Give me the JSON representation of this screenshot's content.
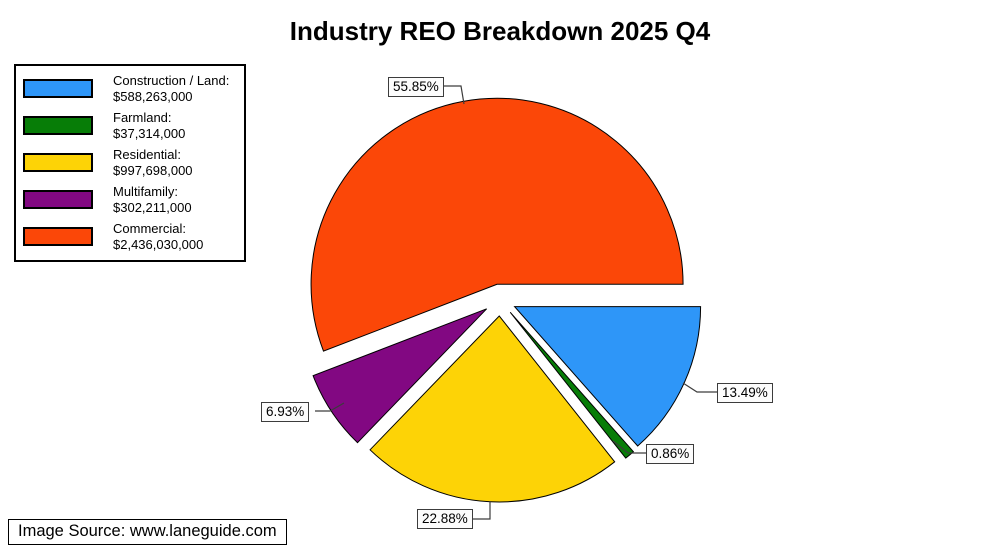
{
  "title": "Industry REO Breakdown 2025 Q4",
  "source_note": "Image Source: www.laneguide.com",
  "legend": {
    "items": [
      {
        "label": "Construction / Land:",
        "value": "$588,263,000"
      },
      {
        "label": "Farmland:",
        "value": "$37,314,000"
      },
      {
        "label": "Residential:",
        "value": "$997,698,000"
      },
      {
        "label": "Multifamily:",
        "value": "$302,211,000"
      },
      {
        "label": "Commercial:",
        "value": "$2,436,030,000"
      }
    ]
  },
  "chart_data": {
    "type": "pie",
    "title": "Industry REO Breakdown 2025 Q4",
    "legend_position": "top-left",
    "exploded": true,
    "start_angle_deg": 0,
    "direction": "clockwise",
    "slices": [
      {
        "label": "Construction / Land",
        "value": 588263000,
        "value_label": "$588,263,000",
        "pct": 13.49,
        "pct_label": "13.49%",
        "color": "#2E96F8"
      },
      {
        "label": "Farmland",
        "value": 37314000,
        "value_label": "$37,314,000",
        "pct": 0.86,
        "pct_label": "0.86%",
        "color": "#077D07"
      },
      {
        "label": "Residential",
        "value": 997698000,
        "value_label": "$997,698,000",
        "pct": 22.88,
        "pct_label": "22.88%",
        "color": "#FDD306"
      },
      {
        "label": "Multifamily",
        "value": 302211000,
        "value_label": "$302,211,000",
        "pct": 6.93,
        "pct_label": "6.93%",
        "color": "#820882"
      },
      {
        "label": "Commercial",
        "value": 2436030000,
        "value_label": "$2,436,030,000",
        "pct": 55.85,
        "pct_label": "55.85%",
        "color": "#FB4708"
      }
    ]
  }
}
